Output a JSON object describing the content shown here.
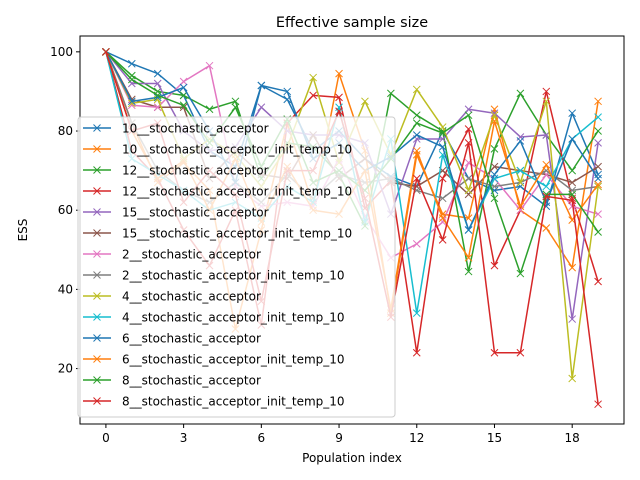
{
  "chart_data": {
    "type": "line",
    "title": "Effective sample size",
    "xlabel": "Population index",
    "ylabel": "ESS",
    "xlim": [
      -1,
      20
    ],
    "ylim": [
      6,
      104
    ],
    "xticks": [
      0,
      3,
      6,
      9,
      12,
      15,
      18
    ],
    "yticks": [
      20,
      40,
      60,
      80,
      100
    ],
    "grid": false,
    "legend_position": "center-left",
    "x": [
      0,
      1,
      2,
      3,
      4,
      5,
      6,
      7,
      8,
      9,
      10,
      11,
      12,
      13,
      14,
      15,
      16,
      17,
      18,
      19
    ],
    "series": [
      {
        "name": "10__stochastic_acceptor",
        "color": "#1f77b4",
        "values": [
          100,
          97,
          94.5,
          89,
          75,
          71,
          91.5,
          88,
          75,
          80,
          73,
          68.5,
          66,
          80,
          68,
          65,
          66,
          61,
          84.5,
          69
        ]
      },
      {
        "name": "10__stochastic_acceptor_init_temp_10",
        "color": "#ff7f0e",
        "values": [
          100,
          82,
          67,
          72,
          65,
          30,
          55,
          82,
          61,
          94.5,
          75,
          34,
          74,
          59,
          58,
          85.5,
          60,
          55.5,
          45.5,
          87.5
        ]
      },
      {
        "name": "12__stochastic_acceptor",
        "color": "#2ca02c",
        "values": [
          100,
          94,
          90,
          89,
          85.5,
          87.5,
          68,
          77,
          76,
          69,
          56,
          89.5,
          84,
          80,
          44.5,
          75.5,
          89.5,
          79,
          70,
          80
        ]
      },
      {
        "name": "12__stochastic_acceptor_init_temp_10",
        "color": "#d62728",
        "values": [
          100,
          75,
          68,
          55,
          46,
          60,
          31,
          82,
          89,
          88.5,
          60.5,
          67.5,
          24,
          68,
          80.5,
          46,
          60,
          90,
          63,
          42
        ]
      },
      {
        "name": "15__stochastic_acceptor",
        "color": "#9467bd",
        "values": [
          100,
          92,
          92,
          80,
          75,
          76,
          86,
          80,
          79,
          79,
          77,
          59,
          78,
          78,
          85.5,
          84.5,
          78.5,
          79,
          32.5,
          77
        ]
      },
      {
        "name": "15__stochastic_acceptor_init_temp_10",
        "color": "#8c564b",
        "values": [
          100,
          88,
          86,
          86,
          68,
          75,
          69,
          68,
          79,
          68,
          73,
          67,
          66,
          70,
          64,
          71,
          70,
          69,
          67,
          71
        ]
      },
      {
        "name": "2__stochastic_acceptor",
        "color": "#e377c2",
        "values": [
          100,
          86.5,
          86,
          92.5,
          96.5,
          66,
          61,
          62,
          61,
          73,
          58.5,
          48,
          51.5,
          57,
          72,
          68,
          60,
          69,
          61,
          59
        ]
      },
      {
        "name": "2__stochastic_acceptor_init_temp_10",
        "color": "#7f7f7f",
        "values": [
          100,
          82,
          70,
          65,
          62,
          67,
          62,
          69,
          63,
          69,
          67,
          68,
          65,
          63,
          68,
          66,
          67,
          70,
          65,
          66
        ]
      },
      {
        "name": "4__stochastic_acceptor",
        "color": "#bcbd22",
        "values": [
          100,
          87,
          88,
          73,
          78,
          74,
          66,
          76,
          93.5,
          72,
          87.5,
          74,
          90.5,
          81,
          65,
          84,
          67,
          87.5,
          17.5,
          66
        ]
      },
      {
        "name": "4__stochastic_acceptor_init_temp_10",
        "color": "#17becf",
        "values": [
          100,
          73,
          69,
          65,
          60,
          62,
          58,
          66,
          62,
          86,
          57,
          78,
          34,
          74,
          55,
          68,
          70,
          66,
          78,
          83.5
        ]
      },
      {
        "name": "6__stochastic_acceptor",
        "color": "#1f77b4",
        "values": [
          100,
          87.5,
          88.5,
          91,
          80,
          67,
          91.5,
          90,
          73,
          77,
          70,
          73.5,
          79,
          76,
          55,
          69,
          77.5,
          62,
          78,
          68
        ]
      },
      {
        "name": "6__stochastic_acceptor_init_temp_10",
        "color": "#ff7f0e",
        "values": [
          100,
          80,
          68,
          72.5,
          60,
          73,
          57,
          71,
          60,
          59,
          70,
          35,
          75,
          58,
          48,
          82.5,
          61,
          71.5,
          57.5,
          66.5
        ]
      },
      {
        "name": "8__stochastic_acceptor",
        "color": "#2ca02c",
        "values": [
          100,
          93,
          89,
          86.5,
          77,
          86,
          71,
          83,
          67,
          70,
          65,
          73,
          82,
          79.5,
          84,
          63,
          44,
          64,
          64,
          54.5
        ]
      },
      {
        "name": "8__stochastic_acceptor_init_temp_10",
        "color": "#d62728",
        "values": [
          100,
          80,
          82,
          62,
          70,
          64,
          37,
          70,
          70,
          85,
          63,
          33,
          68,
          52.5,
          77,
          24,
          24,
          63.5,
          62.5,
          11
        ]
      }
    ]
  }
}
